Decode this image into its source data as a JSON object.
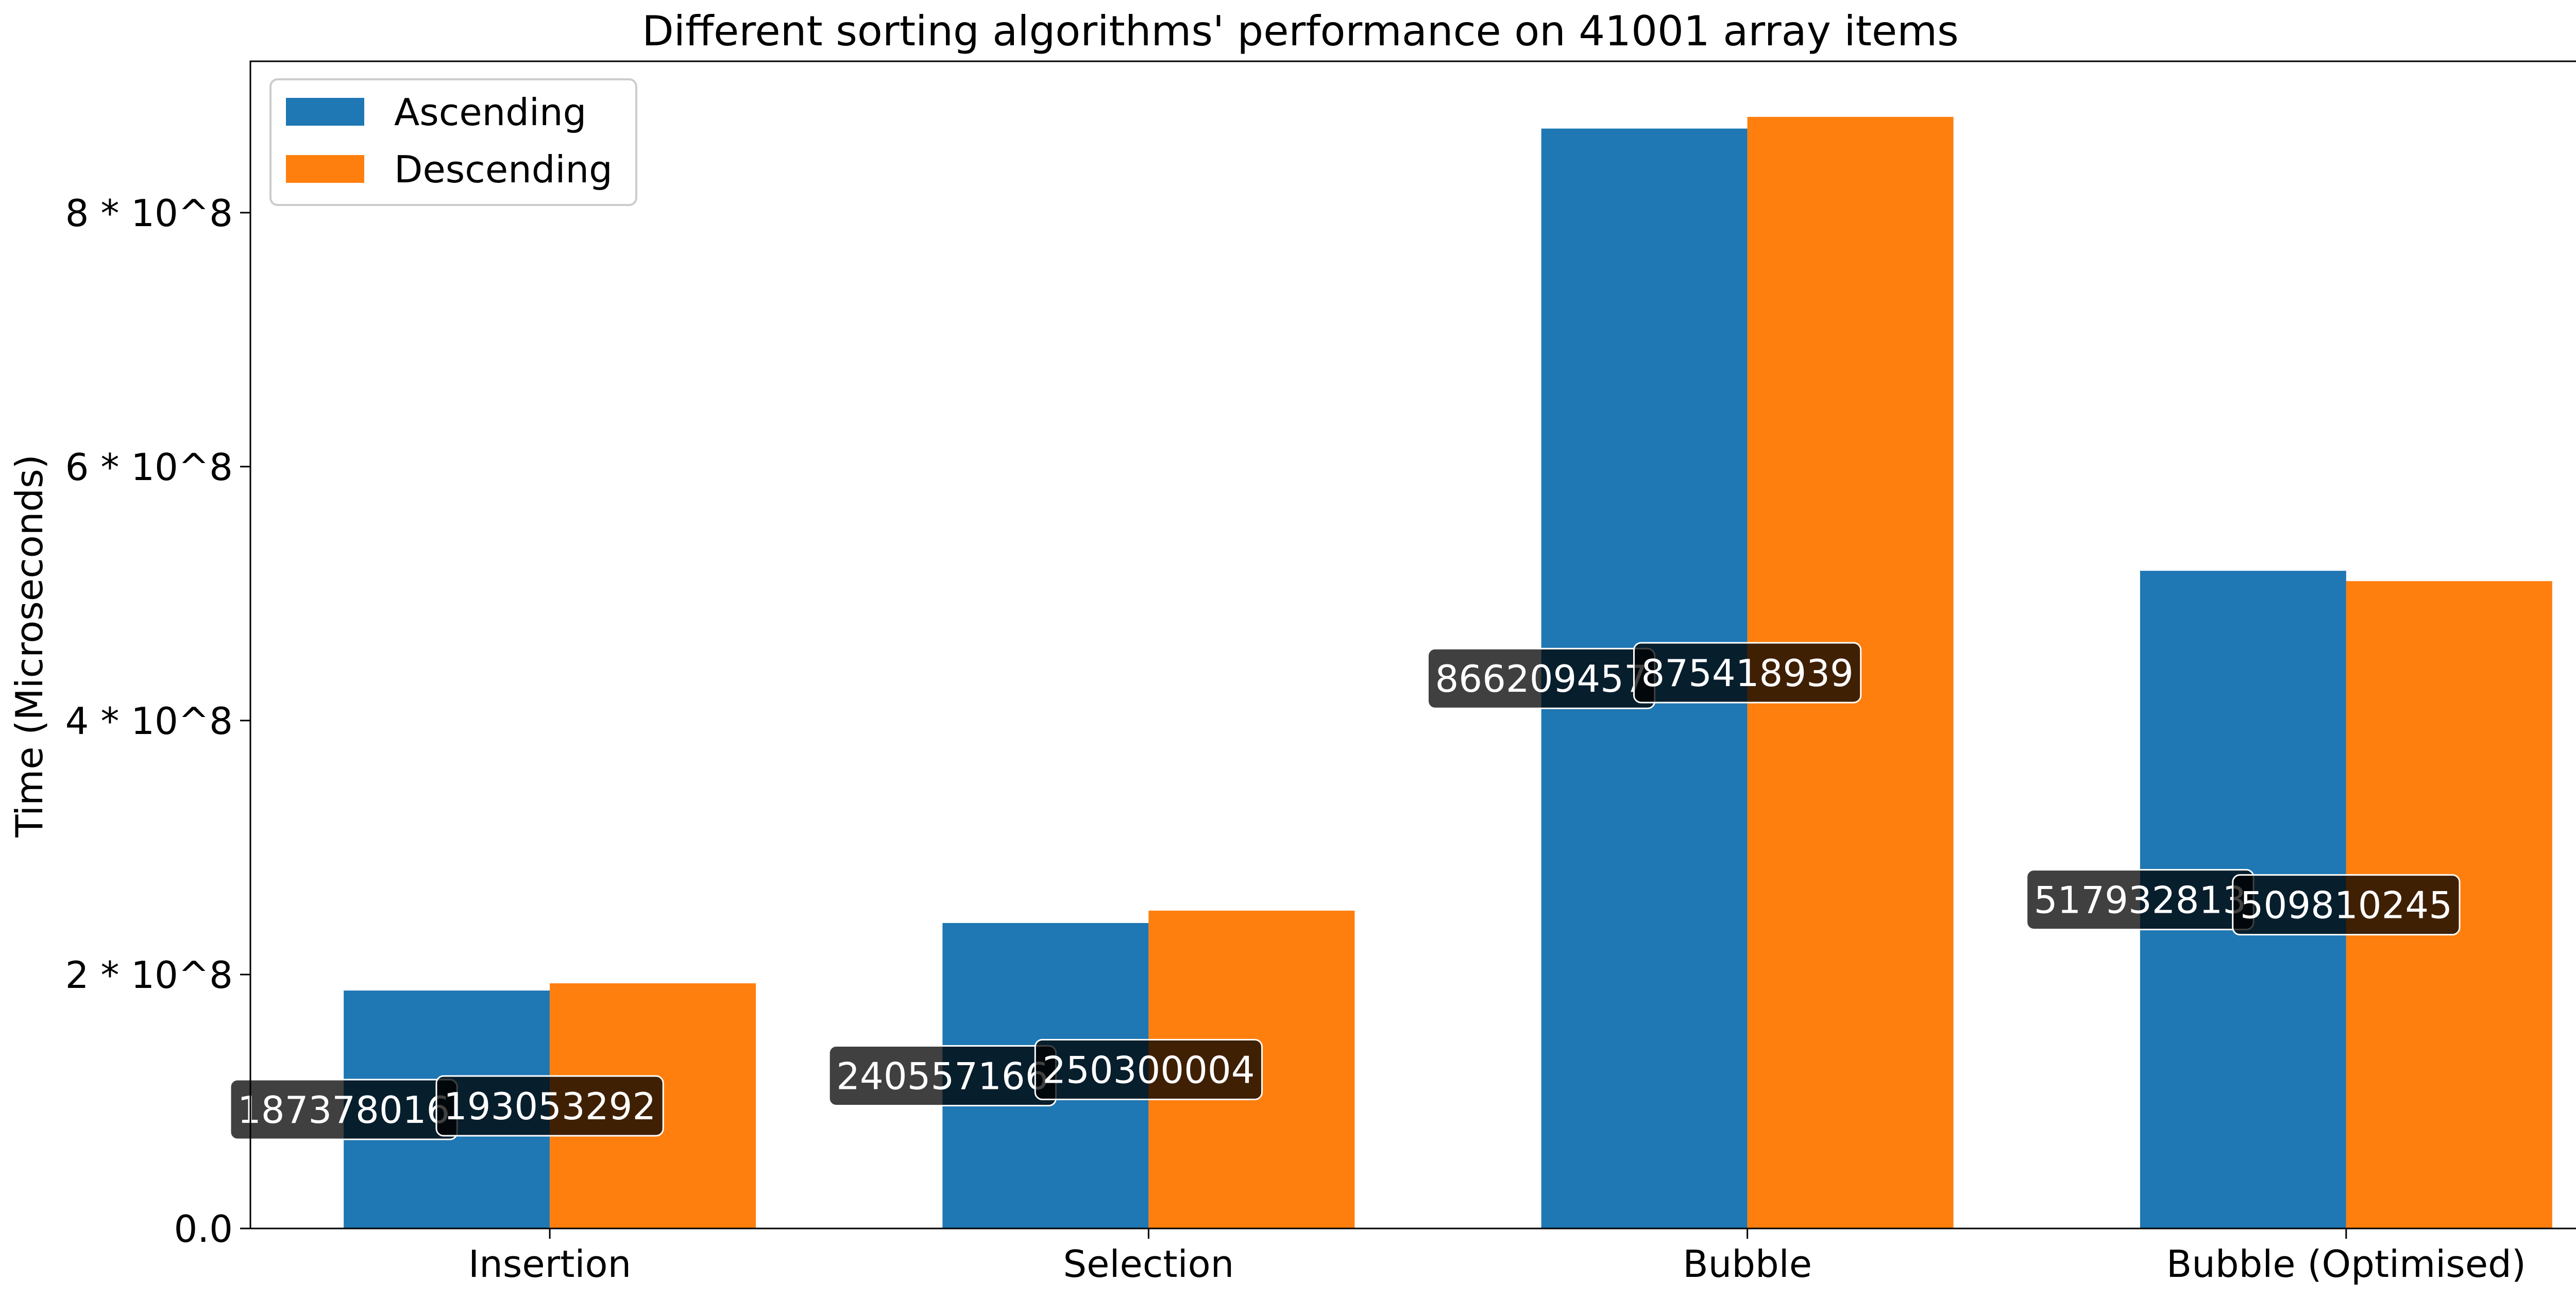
{
  "chart_data": {
    "type": "bar",
    "title": "Different sorting algorithms' performance on 41001 array items",
    "xlabel": "",
    "ylabel": "Time (Microseconds)",
    "categories": [
      "Insertion",
      "Selection",
      "Bubble",
      "Bubble (Optimised)"
    ],
    "series": [
      {
        "name": "Ascending",
        "color": "#1f77b4",
        "values": [
          187378016,
          240557166,
          866209457,
          517932813
        ],
        "labels": [
          "187378016",
          "240557166",
          "866209457",
          "517932813"
        ]
      },
      {
        "name": "Descending",
        "color": "#ff7f0e",
        "values": [
          193053292,
          250300004,
          875418939,
          509810245
        ],
        "labels": [
          "193053292",
          "250300004",
          "875418939",
          "509810245"
        ]
      }
    ],
    "ylim": [
      0,
      919189885
    ],
    "yticks": [
      0,
      200000000,
      400000000,
      600000000,
      800000000
    ],
    "ytick_labels": [
      "0.0",
      "2 * 10^8",
      "4 * 10^8",
      "6 * 10^8",
      "8 * 10^8"
    ],
    "grid": false,
    "legend_position": "top-left",
    "data_label_style": {
      "box_color": "#000000",
      "box_opacity": 0.75,
      "text_color": "#ffffff",
      "border_color": "#ffffff"
    }
  }
}
